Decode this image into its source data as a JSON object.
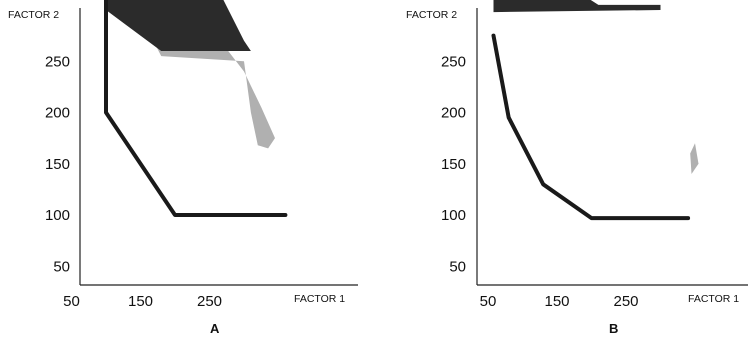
{
  "chart_data": [
    {
      "type": "area",
      "panel_label": "A",
      "xlabel": "FACTOR 1",
      "ylabel": "FACTOR 2",
      "x_ticks": [
        "50",
        "150",
        "250"
      ],
      "y_ticks": [
        "250",
        "200",
        "150",
        "100",
        "50"
      ],
      "x_tick_values": [
        50,
        150,
        250
      ],
      "y_tick_values": [
        250,
        200,
        150,
        100,
        50
      ],
      "xlim": [
        0,
        380
      ],
      "ylim": [
        0,
        420
      ],
      "colors": {
        "boundary": "#1a1a1a",
        "dark_region": "#2b2b2b",
        "light_region": "#b0b0b0"
      },
      "series": [
        {
          "type": "line",
          "points": [
            [
              100,
              375
            ],
            [
              100,
              200
            ],
            [
              200,
              100
            ],
            [
              360,
              100
            ]
          ]
        },
        {
          "type": "dark_region",
          "points": [
            [
              100,
              415
            ],
            [
              160,
              400
            ],
            [
              220,
              360
            ],
            [
              270,
              310
            ],
            [
              300,
              270
            ],
            [
              310,
              260
            ],
            [
              180,
              260
            ],
            [
              100,
              300
            ]
          ]
        },
        {
          "type": "light_region",
          "points": [
            [
              100,
              300
            ],
            [
              200,
              300
            ],
            [
              260,
              275
            ],
            [
              300,
              240
            ],
            [
              325,
              205
            ],
            [
              345,
              175
            ],
            [
              335,
              165
            ],
            [
              320,
              168
            ],
            [
              310,
              200
            ],
            [
              300,
              250
            ],
            [
              180,
              255
            ],
            [
              165,
              275
            ],
            [
              100,
              300
            ]
          ]
        }
      ]
    },
    {
      "type": "area",
      "panel_label": "B",
      "xlabel": "FACTOR 1",
      "ylabel": "FACTOR 2",
      "x_ticks": [
        "50",
        "150",
        "250"
      ],
      "y_ticks": [
        "250",
        "200",
        "150",
        "100",
        "50"
      ],
      "x_tick_values": [
        50,
        150,
        250
      ],
      "y_tick_values": [
        250,
        200,
        150,
        100,
        50
      ],
      "xlim": [
        0,
        380
      ],
      "ylim": [
        0,
        420
      ],
      "colors": {
        "boundary": "#1a1a1a",
        "dark_region": "#2b2b2b",
        "light_region": "#b0b0b0"
      },
      "series": [
        {
          "type": "line",
          "points": [
            [
              58,
              275
            ],
            [
              80,
              195
            ],
            [
              130,
              130
            ],
            [
              200,
              97
            ],
            [
              340,
              97
            ]
          ]
        },
        {
          "type": "dark_region",
          "points": [
            [
              58,
              410
            ],
            [
              90,
              425
            ],
            [
              125,
              420
            ],
            [
              150,
              395
            ],
            [
              165,
              350
            ],
            [
              180,
              318
            ],
            [
              210,
              305
            ],
            [
              300,
              305
            ],
            [
              300,
              300
            ],
            [
              58,
              298
            ]
          ]
        },
        {
          "type": "light_region",
          "points": [
            [
              350,
              170
            ],
            [
              355,
              150
            ],
            [
              345,
              140
            ],
            [
              343,
              160
            ]
          ]
        }
      ]
    }
  ]
}
